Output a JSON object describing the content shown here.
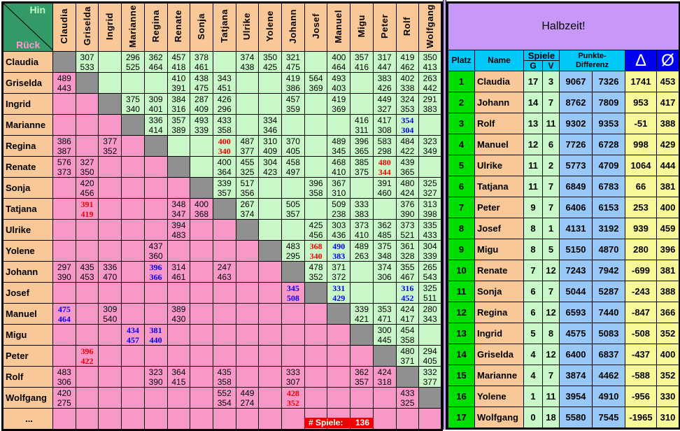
{
  "corner": {
    "hin": "Hin",
    "rueck": "Rück"
  },
  "players": [
    "Claudia",
    "Griselda",
    "Ingrid",
    "Marianne",
    "Regina",
    "Renate",
    "Sonja",
    "Tatjana",
    "Ulrike",
    "Yolene",
    "Johann",
    "Josef",
    "Manuel",
    "Migu",
    "Peter",
    "Rolf",
    "Wolfgang"
  ],
  "last_row_label": "...",
  "matrix": [
    [
      null,
      [
        "307",
        "533"
      ],
      null,
      [
        "296",
        "525"
      ],
      [
        "362",
        "464"
      ],
      [
        "457",
        "418"
      ],
      [
        "378",
        "461"
      ],
      null,
      [
        "374",
        "438"
      ],
      [
        "350",
        "425"
      ],
      [
        "321",
        "475"
      ],
      null,
      [
        "400",
        "464"
      ],
      [
        "357",
        "416"
      ],
      [
        "317",
        "447"
      ],
      [
        "419",
        "462"
      ],
      [
        "350",
        "413"
      ]
    ],
    [
      [
        "489",
        "443"
      ],
      null,
      null,
      null,
      null,
      [
        "410",
        "391"
      ],
      [
        "438",
        "475"
      ],
      [
        "343",
        "451"
      ],
      null,
      null,
      [
        "419",
        "386"
      ],
      [
        "564",
        "369"
      ],
      [
        "493",
        "403"
      ],
      null,
      [
        "383",
        "426"
      ],
      [
        "402",
        "338"
      ],
      [
        "263",
        "442"
      ]
    ],
    [
      null,
      null,
      null,
      [
        "375",
        "340"
      ],
      [
        "309",
        "401"
      ],
      [
        "384",
        "316"
      ],
      [
        "287",
        "409"
      ],
      [
        "426",
        "296"
      ],
      null,
      null,
      [
        "457",
        "359"
      ],
      null,
      [
        "419",
        "369"
      ],
      null,
      [
        "449",
        "327"
      ],
      [
        "324",
        "353"
      ],
      [
        "291",
        "383"
      ]
    ],
    [
      null,
      null,
      null,
      null,
      [
        "336",
        "414"
      ],
      [
        "357",
        "389"
      ],
      [
        "493",
        "339"
      ],
      [
        "433",
        "358"
      ],
      null,
      [
        "334",
        "346"
      ],
      null,
      null,
      null,
      [
        "416",
        "311"
      ],
      [
        "417",
        "308"
      ],
      [
        "354",
        "304",
        "blue"
      ],
      null
    ],
    [
      [
        "386",
        "387"
      ],
      null,
      [
        "377",
        "352"
      ],
      null,
      null,
      null,
      null,
      [
        "400",
        "340",
        "red"
      ],
      [
        "487",
        "377"
      ],
      [
        "310",
        "409"
      ],
      [
        "370",
        "405"
      ],
      null,
      [
        "489",
        "345"
      ],
      [
        "396",
        "365"
      ],
      [
        "583",
        "298"
      ],
      [
        "484",
        "422"
      ],
      [
        "323",
        "349"
      ]
    ],
    [
      [
        "576",
        "373"
      ],
      [
        "327",
        "350"
      ],
      null,
      null,
      null,
      null,
      null,
      [
        "400",
        "364"
      ],
      [
        "455",
        "325"
      ],
      [
        "304",
        "423"
      ],
      [
        "458",
        "497"
      ],
      null,
      [
        "468",
        "410"
      ],
      [
        "385",
        "375"
      ],
      [
        "480",
        "344",
        "red"
      ],
      [
        "439",
        "365"
      ],
      null
    ],
    [
      null,
      [
        "420",
        "456"
      ],
      null,
      null,
      null,
      null,
      null,
      [
        "339",
        "357"
      ],
      [
        "517",
        "356"
      ],
      null,
      null,
      [
        "396",
        "358"
      ],
      [
        "367",
        "310"
      ],
      null,
      [
        "391",
        "460"
      ],
      [
        "480",
        "424"
      ],
      [
        "325",
        "327"
      ]
    ],
    [
      null,
      [
        "391",
        "419",
        "red"
      ],
      null,
      null,
      null,
      [
        "348",
        "347"
      ],
      [
        "400",
        "368"
      ],
      null,
      [
        "267",
        "374"
      ],
      null,
      [
        "505",
        "357"
      ],
      null,
      [
        "509",
        "238"
      ],
      [
        "333",
        "383"
      ],
      null,
      [
        "376",
        "390"
      ],
      [
        "313",
        "398"
      ]
    ],
    [
      null,
      null,
      null,
      null,
      null,
      [
        "394",
        "483"
      ],
      null,
      null,
      null,
      null,
      null,
      [
        "425",
        "456"
      ],
      [
        "303",
        "436"
      ],
      [
        "373",
        "410"
      ],
      [
        "362",
        "485"
      ],
      [
        "373",
        "521"
      ],
      [
        "335",
        "433"
      ]
    ],
    [
      null,
      null,
      null,
      null,
      [
        "437",
        "360"
      ],
      null,
      null,
      null,
      null,
      null,
      [
        "483",
        "295"
      ],
      [
        "368",
        "340",
        "red"
      ],
      [
        "490",
        "383",
        "blue"
      ],
      [
        "489",
        "263"
      ],
      [
        "375",
        "348"
      ],
      [
        "361",
        "328"
      ],
      [
        "304",
        "339"
      ]
    ],
    [
      [
        "297",
        "390"
      ],
      [
        "435",
        "453"
      ],
      [
        "336",
        "470"
      ],
      null,
      [
        "396",
        "366",
        "blue"
      ],
      [
        "314",
        "461"
      ],
      null,
      [
        "247",
        "463"
      ],
      null,
      null,
      null,
      [
        "478",
        "352"
      ],
      [
        "371",
        "372"
      ],
      null,
      [
        "374",
        "306"
      ],
      [
        "355",
        "467"
      ],
      [
        "265",
        "543"
      ]
    ],
    [
      null,
      null,
      null,
      null,
      null,
      null,
      null,
      null,
      null,
      null,
      [
        "345",
        "508",
        "blue"
      ],
      null,
      [
        "331",
        "429",
        "blue"
      ],
      null,
      null,
      [
        "316",
        "452",
        "blue"
      ],
      [
        "325",
        "511"
      ]
    ],
    [
      [
        "475",
        "464",
        "blue"
      ],
      null,
      [
        "309",
        "540"
      ],
      null,
      null,
      [
        "389",
        "430"
      ],
      null,
      null,
      null,
      null,
      null,
      null,
      null,
      [
        "339",
        "421"
      ],
      [
        "353",
        "471"
      ],
      [
        "424",
        "417"
      ],
      [
        "280",
        "343"
      ]
    ],
    [
      null,
      null,
      null,
      [
        "434",
        "457",
        "blue"
      ],
      [
        "381",
        "440",
        "blue"
      ],
      null,
      null,
      null,
      null,
      null,
      null,
      null,
      null,
      null,
      [
        "300",
        "445"
      ],
      [
        "454",
        "358"
      ],
      null
    ],
    [
      null,
      [
        "396",
        "422",
        "red"
      ],
      null,
      null,
      null,
      null,
      null,
      null,
      null,
      null,
      null,
      null,
      null,
      null,
      null,
      [
        "480",
        "371"
      ],
      [
        "294",
        "405"
      ]
    ],
    [
      [
        "483",
        "306"
      ],
      null,
      null,
      null,
      [
        "323",
        "390"
      ],
      [
        "364",
        "415"
      ],
      null,
      [
        "435",
        "358"
      ],
      null,
      null,
      [
        "333",
        "307"
      ],
      null,
      null,
      [
        "362",
        "357"
      ],
      [
        "424",
        "318"
      ],
      null,
      [
        "332",
        "377"
      ]
    ],
    [
      [
        "420",
        "275"
      ],
      null,
      null,
      null,
      null,
      null,
      null,
      [
        "552",
        "354"
      ],
      [
        "449",
        "274"
      ],
      null,
      [
        "428",
        "352",
        "red"
      ],
      null,
      null,
      null,
      null,
      [
        "433",
        "325"
      ],
      null
    ]
  ],
  "games_count": {
    "label": "# Spiele:",
    "value": "136"
  },
  "standings": {
    "title": "Halbzeit!",
    "headers": {
      "platz": "Platz",
      "name": "Name",
      "spiele": "Spiele",
      "g": "G",
      "v": "V",
      "punkte": "Punkte-Differenz",
      "delta": "Δ",
      "avg": "Ø"
    },
    "rows": [
      [
        "1",
        "Claudia",
        "17",
        "3",
        "9067",
        "7326",
        "1741",
        "453"
      ],
      [
        "2",
        "Johann",
        "14",
        "7",
        "8762",
        "7809",
        "953",
        "417"
      ],
      [
        "3",
        "Rolf",
        "13",
        "11",
        "9302",
        "9353",
        "-51",
        "388"
      ],
      [
        "4",
        "Manuel",
        "12",
        "6",
        "7726",
        "6728",
        "998",
        "429"
      ],
      [
        "5",
        "Ulrike",
        "11",
        "2",
        "5773",
        "4709",
        "1064",
        "444"
      ],
      [
        "6",
        "Tatjana",
        "11",
        "7",
        "6849",
        "6783",
        "66",
        "381"
      ],
      [
        "7",
        "Peter",
        "9",
        "7",
        "6406",
        "6153",
        "253",
        "400"
      ],
      [
        "8",
        "Josef",
        "8",
        "1",
        "4131",
        "3192",
        "939",
        "459"
      ],
      [
        "9",
        "Migu",
        "8",
        "5",
        "5150",
        "4870",
        "280",
        "396"
      ],
      [
        "10",
        "Renate",
        "7",
        "12",
        "7243",
        "7942",
        "-699",
        "381"
      ],
      [
        "11",
        "Sonja",
        "6",
        "7",
        "5044",
        "5287",
        "-243",
        "388"
      ],
      [
        "12",
        "Regina",
        "6",
        "12",
        "6593",
        "7440",
        "-847",
        "366"
      ],
      [
        "13",
        "Ingrid",
        "5",
        "8",
        "4575",
        "5083",
        "-508",
        "352"
      ],
      [
        "14",
        "Griselda",
        "4",
        "12",
        "6400",
        "6837",
        "-437",
        "400"
      ],
      [
        "15",
        "Marianne",
        "4",
        "7",
        "3874",
        "4462",
        "-588",
        "352"
      ],
      [
        "16",
        "Yolene",
        "1",
        "11",
        "3954",
        "4910",
        "-956",
        "330"
      ],
      [
        "17",
        "Wolfgang",
        "0",
        "18",
        "5580",
        "7545",
        "-1965",
        "310"
      ]
    ]
  },
  "colors": {
    "header": "#f8c898",
    "upper": "#c8f8c8",
    "lower": "#f898c8",
    "diagonal": "#909090",
    "title": "#c898f8",
    "loss_highlight": "#f00000",
    "win_highlight": "#0000f0"
  }
}
